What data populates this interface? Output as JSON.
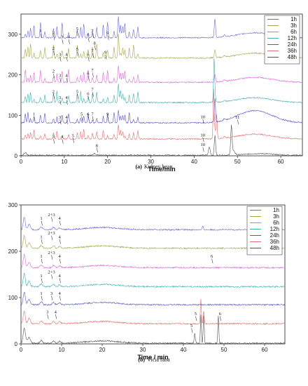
{
  "chart_data": [
    {
      "type": "line",
      "caption_letter": "(a)",
      "caption_text": "Kidney bean",
      "xlabel": "Time/min",
      "ylabel": "",
      "xlim": [
        0,
        65
      ],
      "ylim": [
        0,
        350
      ],
      "xticks": [
        "0",
        "10",
        "20",
        "30",
        "40",
        "50",
        "60"
      ],
      "xtick_values": [
        0,
        10,
        20,
        30,
        40,
        50,
        60
      ],
      "yticks": [
        "0",
        "100",
        "200",
        "300"
      ],
      "ytick_values": [
        0,
        100,
        200,
        300
      ],
      "legend_placement": "top-right",
      "series": [
        {
          "name": "1h",
          "color": "#6a6ad8",
          "offset": 290
        },
        {
          "name": "3h",
          "color": "#a6a64a",
          "offset": 240
        },
        {
          "name": "6h",
          "color": "#d96ad8",
          "offset": 180
        },
        {
          "name": "12h",
          "color": "#3fb0b0",
          "offset": 130
        },
        {
          "name": "24h",
          "color": "#5656c8",
          "offset": 80
        },
        {
          "name": "36h",
          "color": "#e07070",
          "offset": 40
        },
        {
          "name": "48h",
          "color": "#555555",
          "offset": 0
        }
      ],
      "annotations": [
        {
          "text": "1",
          "x": 4.5,
          "y": 305
        },
        {
          "text": "2",
          "x": 7.5,
          "y": 300
        },
        {
          "text": "3",
          "x": 9.5,
          "y": 290
        },
        {
          "text": "4",
          "x": 11,
          "y": 290
        },
        {
          "text": "5",
          "x": 13,
          "y": 310
        },
        {
          "text": "6",
          "x": 15.5,
          "y": 295
        },
        {
          "text": "7",
          "x": 16.5,
          "y": 305
        },
        {
          "text": "8",
          "x": 17,
          "y": 275
        },
        {
          "text": "9",
          "x": 20,
          "y": 300
        },
        {
          "text": "2",
          "x": 7.5,
          "y": 262
        },
        {
          "text": "3",
          "x": 9,
          "y": 247
        },
        {
          "text": "4",
          "x": 10.5,
          "y": 247
        },
        {
          "text": "5",
          "x": 13,
          "y": 260
        },
        {
          "text": "6",
          "x": 15.5,
          "y": 247
        },
        {
          "text": "7",
          "x": 16.5,
          "y": 256
        },
        {
          "text": "9",
          "x": 19.5,
          "y": 252
        },
        {
          "text": "2",
          "x": 7.5,
          "y": 205
        },
        {
          "text": "3",
          "x": 9,
          "y": 195
        },
        {
          "text": "4",
          "x": 10.5,
          "y": 195
        },
        {
          "text": "6",
          "x": 15.5,
          "y": 200
        },
        {
          "text": "7",
          "x": 16.5,
          "y": 208
        },
        {
          "text": "2",
          "x": 7.5,
          "y": 155
        },
        {
          "text": "3",
          "x": 9,
          "y": 140
        },
        {
          "text": "4",
          "x": 10.5,
          "y": 140
        },
        {
          "text": "5",
          "x": 13,
          "y": 155
        },
        {
          "text": "6",
          "x": 15.5,
          "y": 150
        },
        {
          "text": "7",
          "x": 16.5,
          "y": 160
        },
        {
          "text": "1",
          "x": 3,
          "y": 100
        },
        {
          "text": "3",
          "x": 9,
          "y": 92
        },
        {
          "text": "4",
          "x": 10.5,
          "y": 92
        },
        {
          "text": "5",
          "x": 14,
          "y": 100
        },
        {
          "text": "6",
          "x": 15.5,
          "y": 100
        },
        {
          "text": "7",
          "x": 16.5,
          "y": 100
        },
        {
          "text": "9",
          "x": 20,
          "y": 100
        },
        {
          "text": "10",
          "x": 42,
          "y": 93
        },
        {
          "text": "3",
          "x": 7.5,
          "y": 44
        },
        {
          "text": "4",
          "x": 9.5,
          "y": 44
        },
        {
          "text": "5",
          "x": 12,
          "y": 46
        },
        {
          "text": "10",
          "x": 42,
          "y": 48
        },
        {
          "text": "11",
          "x": 50,
          "y": 92
        },
        {
          "text": "8",
          "x": 17.5,
          "y": 22
        },
        {
          "text": "10",
          "x": 42,
          "y": 24
        }
      ]
    },
    {
      "type": "line",
      "caption_letter": "(b)",
      "caption_text": "Vicia faba",
      "xlabel": "Time / min",
      "ylabel": "",
      "xlim": [
        0,
        65
      ],
      "ylim": [
        0,
        300
      ],
      "xticks": [
        "0",
        "10",
        "20",
        "30",
        "40",
        "50",
        "60"
      ],
      "xtick_values": [
        0,
        10,
        20,
        30,
        40,
        50,
        60
      ],
      "yticks": [
        "0",
        "100",
        "200",
        "300"
      ],
      "ytick_values": [
        0,
        100,
        200,
        300
      ],
      "legend_placement": "top-right",
      "series": [
        {
          "name": "1h",
          "color": "#6a6ad8",
          "offset": 245
        },
        {
          "name": "3h",
          "color": "#a6a64a",
          "offset": 205
        },
        {
          "name": "6h",
          "color": "#d96ad8",
          "offset": 163
        },
        {
          "name": "12h",
          "color": "#3fb0b0",
          "offset": 122
        },
        {
          "name": "24h",
          "color": "#5656c8",
          "offset": 83
        },
        {
          "name": "36h",
          "color": "#e07070",
          "offset": 42
        },
        {
          "name": "48h",
          "color": "#555555",
          "offset": 0
        }
      ],
      "annotations": [
        {
          "text": "1",
          "x": 5,
          "y": 268
        },
        {
          "text": "2+3",
          "x": 7.5,
          "y": 276
        },
        {
          "text": "4",
          "x": 9.5,
          "y": 268
        },
        {
          "text": "1",
          "x": 5,
          "y": 228
        },
        {
          "text": "2+3",
          "x": 7.5,
          "y": 236
        },
        {
          "text": "4",
          "x": 9.5,
          "y": 228
        },
        {
          "text": "1",
          "x": 5,
          "y": 186
        },
        {
          "text": "2+3",
          "x": 7.5,
          "y": 194
        },
        {
          "text": "4",
          "x": 9.5,
          "y": 186
        },
        {
          "text": "6",
          "x": 47,
          "y": 186
        },
        {
          "text": "1",
          "x": 5,
          "y": 144
        },
        {
          "text": "2+3",
          "x": 7.5,
          "y": 152
        },
        {
          "text": "4",
          "x": 9.5,
          "y": 144
        },
        {
          "text": "1",
          "x": 5,
          "y": 106
        },
        {
          "text": "3",
          "x": 7.5,
          "y": 106
        },
        {
          "text": "4",
          "x": 9.5,
          "y": 106
        },
        {
          "text": "3",
          "x": 6.5,
          "y": 66
        },
        {
          "text": "4",
          "x": 8.5,
          "y": 66
        },
        {
          "text": "5",
          "x": 42,
          "y": 36
        },
        {
          "text": "5",
          "x": 43,
          "y": 62
        },
        {
          "text": "6",
          "x": 49,
          "y": 62
        }
      ]
    }
  ]
}
